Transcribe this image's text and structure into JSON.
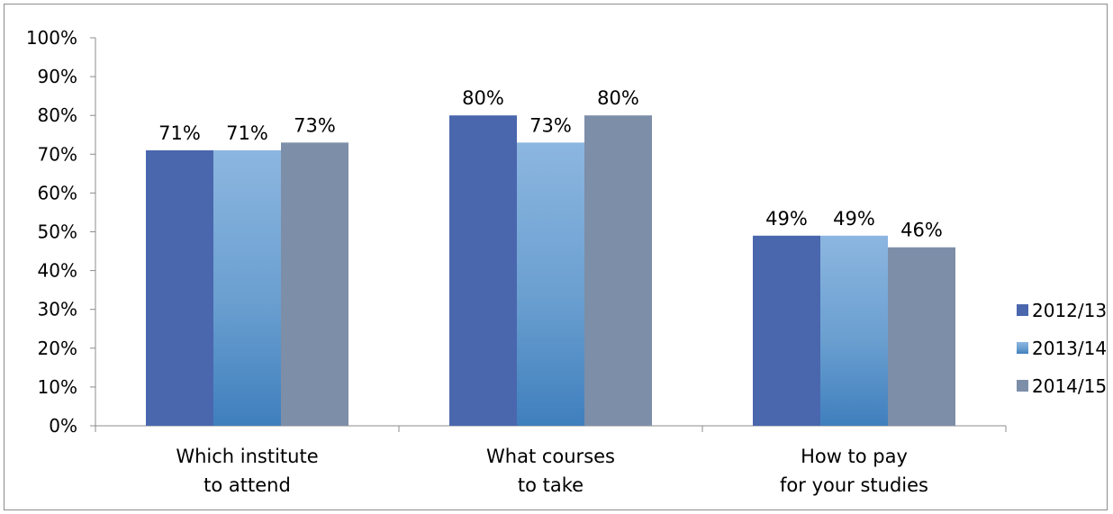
{
  "chart_data": {
    "type": "bar",
    "categories": [
      [
        "Which institute",
        "to attend"
      ],
      [
        "What courses",
        "to take"
      ],
      [
        "How to pay",
        "for your studies"
      ]
    ],
    "series": [
      {
        "name": "2012/13",
        "values": [
          71,
          80,
          49
        ],
        "color": "#4a67ae"
      },
      {
        "name": "2013/14",
        "values": [
          71,
          73,
          49
        ],
        "color": "#6fa4d6"
      },
      {
        "name": "2014/15",
        "values": [
          73,
          80,
          46
        ],
        "color": "#7d8ea8"
      }
    ],
    "data_labels": [
      [
        "71%",
        "71%",
        "73%"
      ],
      [
        "80%",
        "73%",
        "80%"
      ],
      [
        "49%",
        "49%",
        "46%"
      ]
    ],
    "y_ticks": [
      "0%",
      "10%",
      "20%",
      "30%",
      "40%",
      "50%",
      "60%",
      "70%",
      "80%",
      "90%",
      "100%"
    ],
    "ylim": [
      0,
      100
    ],
    "grid": false,
    "legend_position": "right"
  }
}
